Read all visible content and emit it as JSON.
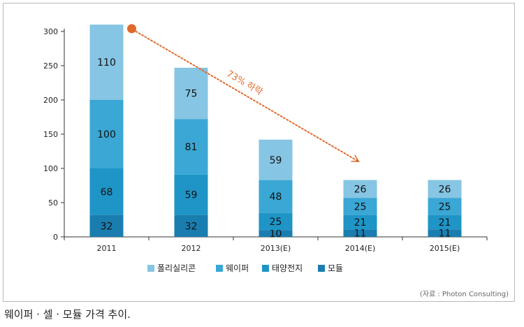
{
  "chart_data": {
    "type": "bar",
    "stacked": true,
    "categories": [
      "2011",
      "2012",
      "2013(E)",
      "2014(E)",
      "2015(E)"
    ],
    "series": [
      {
        "name": "모듈",
        "values": [
          32,
          32,
          10,
          11,
          11
        ],
        "color": "#1a7db0"
      },
      {
        "name": "태양전지",
        "values": [
          68,
          59,
          25,
          21,
          21
        ],
        "color": "#1e95c6"
      },
      {
        "name": "웨이퍼",
        "values": [
          100,
          81,
          48,
          25,
          25
        ],
        "color": "#3aa7d4"
      },
      {
        "name": "폴리실리콘",
        "values": [
          110,
          75,
          59,
          26,
          26
        ],
        "color": "#86c5e3"
      }
    ],
    "legend_order": [
      "폴리실리콘",
      "웨이퍼",
      "태양전지",
      "모듈"
    ],
    "yticks": [
      0,
      50,
      100,
      150,
      200,
      250,
      300
    ],
    "ylim": [
      0,
      300
    ],
    "annotation": {
      "text": "73% 하락",
      "from_category": "2011",
      "from_value": 300,
      "to_category": "2014(E)",
      "to_value": 110,
      "color": "#e06a2e"
    },
    "legend_position": "bottom"
  },
  "source": "(자료 : Photon Consulting)",
  "caption": "웨이퍼 · 셀 · 모듈 가격 추이."
}
